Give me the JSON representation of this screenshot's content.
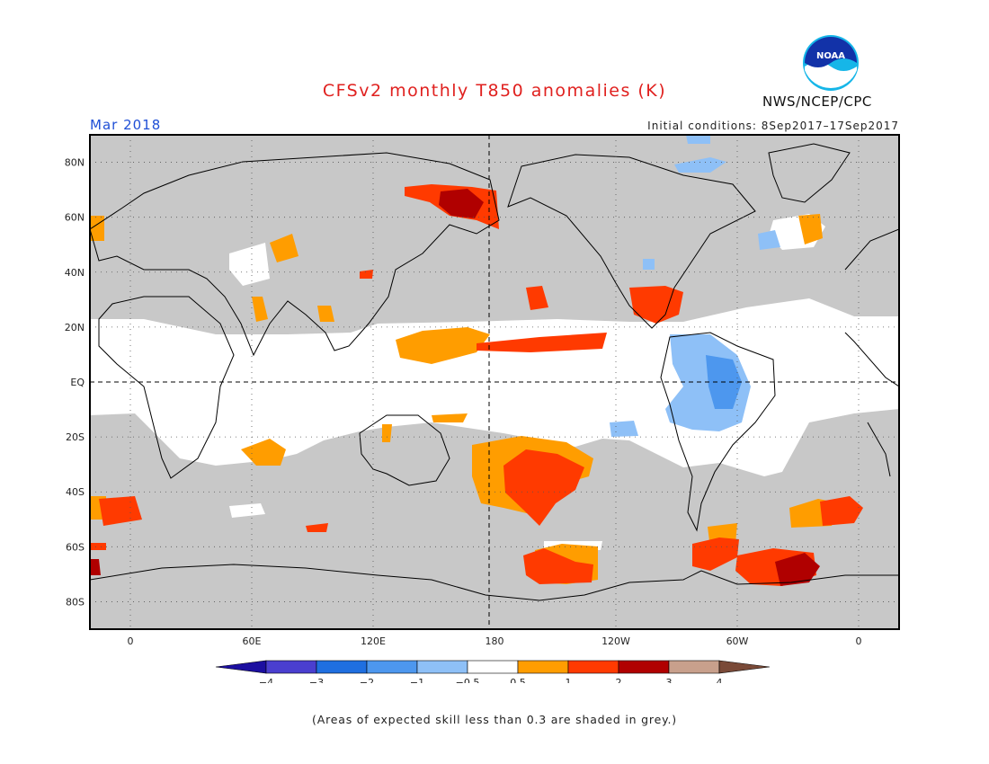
{
  "title": "CFSv2 monthly T850 anomalies (K)",
  "target_month": "Mar 2018",
  "initial_conditions": "Initial conditions: 8Sep2017–17Sep2017",
  "agency": "NWS/NCEP/CPC",
  "logo": {
    "text": "NOAA",
    "icon": "noaa-logo"
  },
  "footnote": "(Areas of expected skill less than 0.3 are shaded in grey.)",
  "map": {
    "lat_labels": [
      "80N",
      "60N",
      "40N",
      "20N",
      "EQ",
      "20S",
      "40S",
      "60S",
      "80S"
    ],
    "lat_values": [
      80,
      60,
      40,
      20,
      0,
      -20,
      -40,
      -60,
      -80
    ],
    "lon_labels": [
      "0",
      "60E",
      "120E",
      "180",
      "120W",
      "60W",
      "0"
    ],
    "lon_values": [
      0,
      60,
      120,
      180,
      240,
      300,
      360
    ],
    "lon_range": [
      -20,
      380
    ],
    "lat_range": [
      -90,
      90
    ],
    "grey_meaning": "skill < 0.3"
  },
  "legend": {
    "tick_labels": [
      "−4",
      "−3",
      "−2",
      "−1",
      "−0.5",
      "0.5",
      "1",
      "2",
      "3",
      "4"
    ],
    "colors": [
      "#1c0fa0",
      "#4a3fcf",
      "#1f6fe0",
      "#4d97ee",
      "#8ec0f7",
      "#ffffff",
      "#ff9d00",
      "#ff3a00",
      "#b00000",
      "#c8a08c",
      "#7a4a38"
    ]
  },
  "colors": {
    "grey": "#c8c8c8",
    "title_red": "#e0211f",
    "month_blue": "#1f4fd6"
  }
}
